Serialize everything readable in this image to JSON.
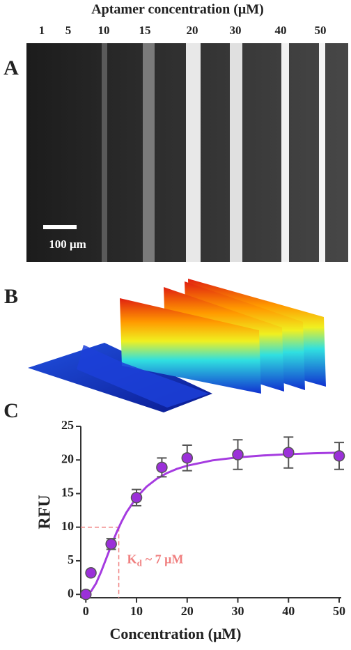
{
  "panels": {
    "a": "A",
    "b": "B",
    "c": "C"
  },
  "micrograph": {
    "title": "Aptamer concentration (μM)",
    "lane_labels": [
      "1",
      "5",
      "10",
      "15",
      "20",
      "30",
      "40",
      "50"
    ],
    "scale_bar": "100 μm"
  },
  "chart_data": {
    "type": "scatter",
    "xlabel": "Concentration  (μM)",
    "ylabel": "RFU",
    "x": [
      0,
      1,
      5,
      10,
      15,
      20,
      30,
      40,
      50
    ],
    "values": [
      0,
      3.2,
      7.5,
      14.4,
      18.9,
      20.3,
      20.8,
      21.1,
      20.6
    ],
    "errors": [
      0,
      0,
      0.8,
      1.2,
      1.4,
      1.9,
      2.2,
      2.3,
      2.0
    ],
    "color": "#9b30d9",
    "fit_curve": {
      "color": "#a53be0",
      "x": [
        0,
        1,
        2,
        3,
        4,
        5,
        6,
        7,
        8,
        10,
        12,
        14,
        16,
        18,
        20,
        25,
        30,
        35,
        40,
        45,
        50
      ],
      "values": [
        0,
        0.43,
        1.62,
        3.34,
        5.29,
        7.26,
        9.11,
        10.75,
        12.18,
        14.43,
        16.04,
        17.2,
        18.05,
        18.68,
        19.15,
        19.94,
        20.39,
        20.67,
        20.86,
        20.99,
        21.09
      ]
    },
    "guide": {
      "x": 6.5,
      "y": 10,
      "color": "#f08080"
    },
    "annotation": {
      "text": "K",
      "subscript": "d",
      "suffix": "~ 7 μM"
    },
    "xlim": [
      -1,
      50
    ],
    "ylim": [
      -0.5,
      25
    ],
    "xticks": [
      0,
      10,
      20,
      30,
      40,
      50
    ],
    "yticks": [
      0,
      5,
      10,
      15,
      20,
      25
    ]
  }
}
